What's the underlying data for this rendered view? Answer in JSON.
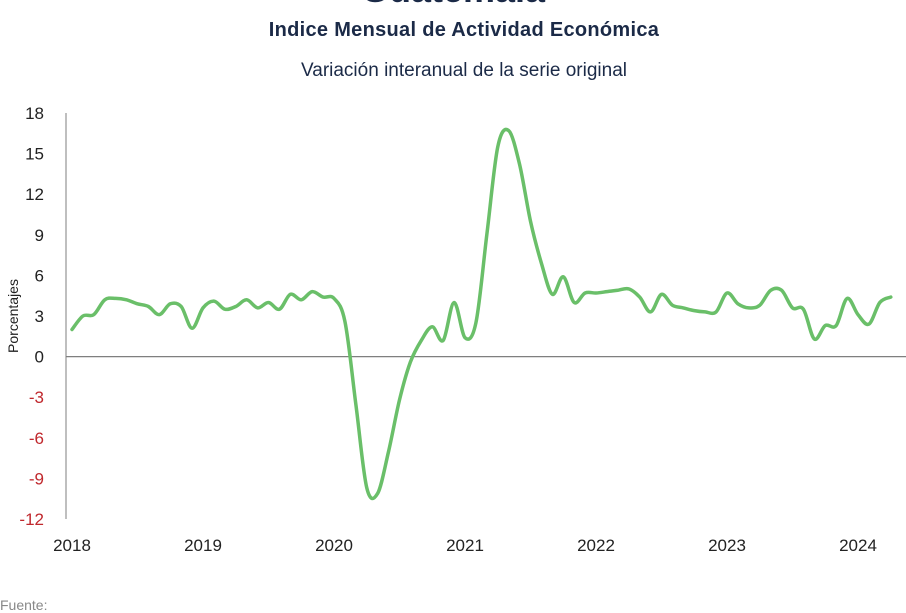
{
  "header": {
    "top_title": "Guatemala",
    "title": "Indice Mensual de  Actividad Económica",
    "subtitle": "Variación interanual de la serie original"
  },
  "footer": {
    "source": "Fuente:"
  },
  "colors": {
    "line": "#6abf69",
    "negative_tick": "#c0282d",
    "tick": "#222222",
    "axis": "#7f7f7f"
  },
  "chart_data": {
    "type": "line",
    "title": "Indice Mensual de  Actividad Económica",
    "subtitle": "Variación interanual de la serie original",
    "xlabel": "",
    "ylabel": "Porcentajes",
    "ylim": [
      -12,
      18
    ],
    "yticks": [
      18,
      15,
      12,
      9,
      6,
      3,
      0,
      -3,
      -6,
      -9,
      -12
    ],
    "xticks": [
      "2018",
      "2019",
      "2020",
      "2021",
      "2022",
      "2023",
      "2024"
    ],
    "grid": false,
    "legend": "none",
    "x_start": "2018-01",
    "x_end": "2024-04",
    "series": [
      {
        "values": [
          2.0,
          3.0,
          3.1,
          4.2,
          4.3,
          4.2,
          3.9,
          3.7,
          3.1,
          3.9,
          3.7,
          2.1,
          3.6,
          4.1,
          3.5,
          3.7,
          4.2,
          3.6,
          4.0,
          3.5,
          4.6,
          4.2,
          4.8,
          4.4,
          4.3,
          2.6,
          -3.5,
          -9.7,
          -10.1,
          -7.0,
          -3.2,
          -0.4,
          1.2,
          2.2,
          1.2,
          4.0,
          1.4,
          2.5,
          9.0,
          15.5,
          16.7,
          14.2,
          10.0,
          6.9,
          4.6,
          5.9,
          4.0,
          4.7,
          4.7,
          4.8,
          4.9,
          5.0,
          4.4,
          3.3,
          4.6,
          3.8,
          3.6,
          3.4,
          3.3,
          3.3,
          4.7,
          3.9,
          3.6,
          3.8,
          4.9,
          4.9,
          3.6,
          3.5,
          1.3,
          2.3,
          2.3,
          4.3,
          3.1,
          2.4,
          4.0,
          4.4
        ]
      }
    ]
  }
}
